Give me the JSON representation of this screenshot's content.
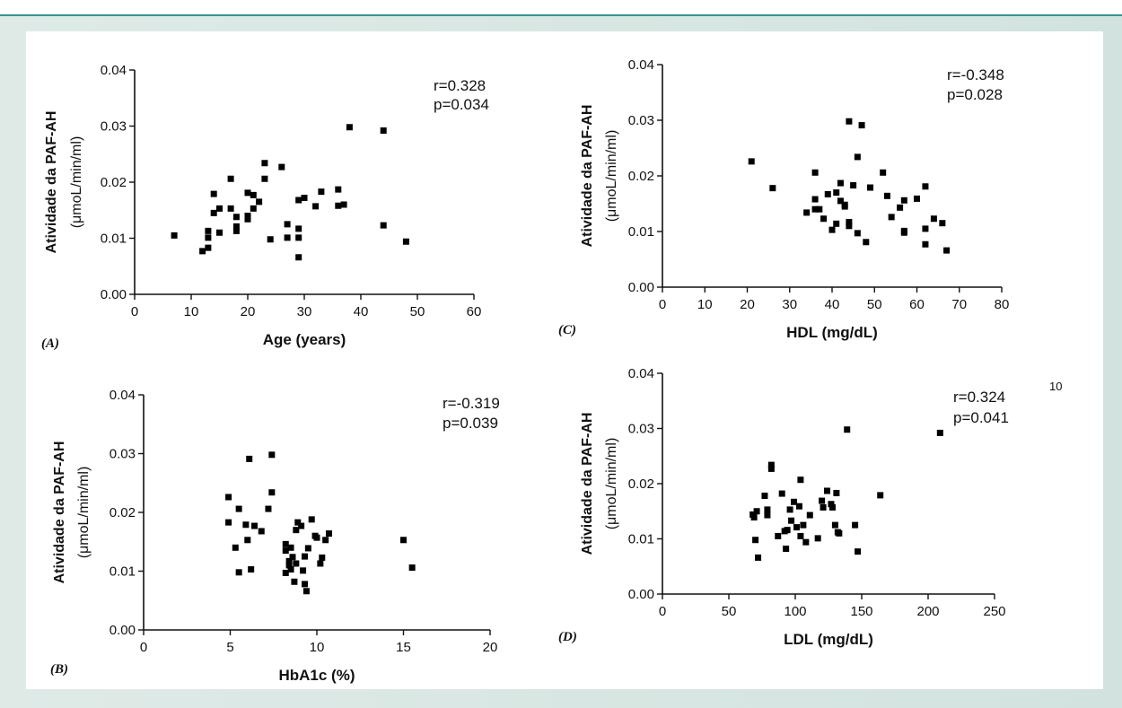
{
  "page_number": "10",
  "chart_data": [
    {
      "type": "scatter",
      "panel_label": "(A)",
      "xlabel": "Age (years)",
      "ylabel": "Atividade da PAF-AH",
      "ylabel_unit": "(μmoL/min/ml)",
      "xlim": [
        0,
        60
      ],
      "ylim": [
        0,
        0.04
      ],
      "xticks": [
        "0",
        "10",
        "20",
        "30",
        "40",
        "50",
        "60"
      ],
      "yticks": [
        "0.00",
        "0.01",
        "0.02",
        "0.03",
        "0.04"
      ],
      "xtick_values": [
        0,
        10,
        20,
        30,
        40,
        50,
        60
      ],
      "ytick_values": [
        0,
        0.01,
        0.02,
        0.03,
        0.04
      ],
      "stat_r": "r=0.328",
      "stat_p": "p=0.034",
      "points": [
        [
          7,
          0.0105
        ],
        [
          12,
          0.0077
        ],
        [
          13,
          0.0083
        ],
        [
          13,
          0.0101
        ],
        [
          13,
          0.0113
        ],
        [
          14,
          0.0145
        ],
        [
          14,
          0.0179
        ],
        [
          15,
          0.0153
        ],
        [
          15,
          0.011
        ],
        [
          17,
          0.0206
        ],
        [
          17,
          0.0153
        ],
        [
          18,
          0.0138
        ],
        [
          18,
          0.0121
        ],
        [
          18,
          0.0113
        ],
        [
          20,
          0.0181
        ],
        [
          20,
          0.014
        ],
        [
          20,
          0.0134
        ],
        [
          21,
          0.0177
        ],
        [
          21,
          0.0153
        ],
        [
          22,
          0.0165
        ],
        [
          23,
          0.0234
        ],
        [
          23,
          0.0206
        ],
        [
          24,
          0.0098
        ],
        [
          26,
          0.0227
        ],
        [
          27,
          0.0125
        ],
        [
          27,
          0.0101
        ],
        [
          29,
          0.0168
        ],
        [
          29,
          0.0117
        ],
        [
          29,
          0.0101
        ],
        [
          29,
          0.0066
        ],
        [
          30,
          0.0172
        ],
        [
          32,
          0.0157
        ],
        [
          33,
          0.0183
        ],
        [
          36,
          0.0187
        ],
        [
          36,
          0.0158
        ],
        [
          37,
          0.016
        ],
        [
          38,
          0.0298
        ],
        [
          44,
          0.0292
        ],
        [
          44,
          0.0123
        ],
        [
          48,
          0.0094
        ]
      ]
    },
    {
      "type": "scatter",
      "panel_label": "(B)",
      "xlabel": "HbA1c (%)",
      "ylabel": "Atividade da PAF-AH",
      "ylabel_unit": "(μmoL/min/ml)",
      "xlim": [
        0,
        20
      ],
      "ylim": [
        0,
        0.04
      ],
      "xticks": [
        "0",
        "5",
        "10",
        "15",
        "20"
      ],
      "yticks": [
        "0.00",
        "0.01",
        "0.02",
        "0.03",
        "0.04"
      ],
      "xtick_values": [
        0,
        5,
        10,
        15,
        20
      ],
      "ytick_values": [
        0,
        0.01,
        0.02,
        0.03,
        0.04
      ],
      "stat_r": "r=-0.319",
      "stat_p": "p=0.039",
      "points": [
        [
          4.9,
          0.0226
        ],
        [
          4.9,
          0.0183
        ],
        [
          5.3,
          0.014
        ],
        [
          5.5,
          0.0206
        ],
        [
          5.5,
          0.0098
        ],
        [
          5.9,
          0.0179
        ],
        [
          6.0,
          0.0153
        ],
        [
          6.1,
          0.0291
        ],
        [
          6.2,
          0.0103
        ],
        [
          6.4,
          0.0177
        ],
        [
          6.8,
          0.0168
        ],
        [
          7.2,
          0.0206
        ],
        [
          7.4,
          0.0298
        ],
        [
          7.4,
          0.0234
        ],
        [
          8.2,
          0.0146
        ],
        [
          8.2,
          0.0135
        ],
        [
          8.2,
          0.0097
        ],
        [
          8.4,
          0.0117
        ],
        [
          8.4,
          0.011
        ],
        [
          8.5,
          0.014
        ],
        [
          8.5,
          0.0103
        ],
        [
          8.6,
          0.0124
        ],
        [
          8.7,
          0.0082
        ],
        [
          8.8,
          0.017
        ],
        [
          8.8,
          0.0113
        ],
        [
          8.9,
          0.0183
        ],
        [
          9.1,
          0.0177
        ],
        [
          9.2,
          0.0101
        ],
        [
          9.3,
          0.0125
        ],
        [
          9.3,
          0.0078
        ],
        [
          9.4,
          0.0066
        ],
        [
          9.5,
          0.0139
        ],
        [
          9.7,
          0.0188
        ],
        [
          9.9,
          0.016
        ],
        [
          10.0,
          0.0157
        ],
        [
          10.2,
          0.0113
        ],
        [
          10.3,
          0.0123
        ],
        [
          10.5,
          0.0153
        ],
        [
          10.7,
          0.0164
        ],
        [
          15.0,
          0.0153
        ],
        [
          15.5,
          0.0106
        ]
      ]
    },
    {
      "type": "scatter",
      "panel_label": "(C)",
      "xlabel": "HDL (mg/dL)",
      "ylabel": "Atividade da PAF-AH",
      "ylabel_unit": "(μmoL/min/ml)",
      "xlim": [
        0,
        80
      ],
      "ylim": [
        0,
        0.04
      ],
      "xticks": [
        "0",
        "10",
        "20",
        "30",
        "40",
        "50",
        "60",
        "70",
        "80"
      ],
      "yticks": [
        "0.00",
        "0.01",
        "0.02",
        "0.03",
        "0.04"
      ],
      "xtick_values": [
        0,
        10,
        20,
        30,
        40,
        50,
        60,
        70,
        80
      ],
      "ytick_values": [
        0,
        0.01,
        0.02,
        0.03,
        0.04
      ],
      "stat_r": "r=-0.348",
      "stat_p": "p=0.028",
      "points": [
        [
          21,
          0.0226
        ],
        [
          26,
          0.0178
        ],
        [
          34,
          0.0134
        ],
        [
          36,
          0.0206
        ],
        [
          36,
          0.0158
        ],
        [
          36,
          0.014
        ],
        [
          37,
          0.014
        ],
        [
          38,
          0.0123
        ],
        [
          39,
          0.0167
        ],
        [
          40,
          0.0103
        ],
        [
          41,
          0.017
        ],
        [
          41,
          0.0114
        ],
        [
          42,
          0.0187
        ],
        [
          42,
          0.0155
        ],
        [
          43,
          0.0148
        ],
        [
          43,
          0.0145
        ],
        [
          44,
          0.0298
        ],
        [
          44,
          0.0117
        ],
        [
          44,
          0.011
        ],
        [
          45,
          0.0183
        ],
        [
          46,
          0.0234
        ],
        [
          46,
          0.0097
        ],
        [
          47,
          0.0291
        ],
        [
          48,
          0.0081
        ],
        [
          49,
          0.0179
        ],
        [
          52,
          0.0206
        ],
        [
          53,
          0.0164
        ],
        [
          54,
          0.0126
        ],
        [
          56,
          0.0143
        ],
        [
          57,
          0.0156
        ],
        [
          57,
          0.0101
        ],
        [
          57,
          0.0098
        ],
        [
          60,
          0.0159
        ],
        [
          62,
          0.0181
        ],
        [
          62,
          0.0105
        ],
        [
          62,
          0.0077
        ],
        [
          64,
          0.0123
        ],
        [
          66,
          0.0115
        ],
        [
          67,
          0.0066
        ]
      ]
    },
    {
      "type": "scatter",
      "panel_label": "(D)",
      "xlabel": "LDL (mg/dL)",
      "ylabel": "Atividade da PAF-AH",
      "ylabel_unit": "(μmoL/min/ml)",
      "xlim": [
        0,
        250
      ],
      "ylim": [
        0,
        0.04
      ],
      "xticks": [
        "0",
        "50",
        "100",
        "150",
        "200",
        "250"
      ],
      "yticks": [
        "0.00",
        "0.01",
        "0.02",
        "0.03",
        "0.04"
      ],
      "xtick_values": [
        0,
        50,
        100,
        150,
        200,
        250
      ],
      "ytick_values": [
        0,
        0.01,
        0.02,
        0.03,
        0.04
      ],
      "stat_r": "r=0.324",
      "stat_p": "p=0.041",
      "points": [
        [
          68,
          0.0144
        ],
        [
          69,
          0.0139
        ],
        [
          70,
          0.0098
        ],
        [
          71,
          0.015
        ],
        [
          72,
          0.0066
        ],
        [
          77,
          0.0178
        ],
        [
          79,
          0.0153
        ],
        [
          79,
          0.0143
        ],
        [
          82,
          0.0234
        ],
        [
          82,
          0.0227
        ],
        [
          87,
          0.0105
        ],
        [
          90,
          0.0182
        ],
        [
          92,
          0.0114
        ],
        [
          93,
          0.0082
        ],
        [
          94,
          0.0116
        ],
        [
          96,
          0.0153
        ],
        [
          97,
          0.0133
        ],
        [
          99,
          0.0167
        ],
        [
          101,
          0.0121
        ],
        [
          103,
          0.0159
        ],
        [
          104,
          0.0207
        ],
        [
          104,
          0.0105
        ],
        [
          106,
          0.0125
        ],
        [
          108,
          0.0094
        ],
        [
          111,
          0.0143
        ],
        [
          117,
          0.0101
        ],
        [
          120,
          0.0169
        ],
        [
          121,
          0.0157
        ],
        [
          124,
          0.0187
        ],
        [
          127,
          0.0163
        ],
        [
          128,
          0.0157
        ],
        [
          130,
          0.0125
        ],
        [
          131,
          0.0183
        ],
        [
          132,
          0.0112
        ],
        [
          133,
          0.011
        ],
        [
          139,
          0.0298
        ],
        [
          145,
          0.0125
        ],
        [
          147,
          0.0077
        ],
        [
          164,
          0.0179
        ],
        [
          209,
          0.0292
        ]
      ]
    }
  ]
}
